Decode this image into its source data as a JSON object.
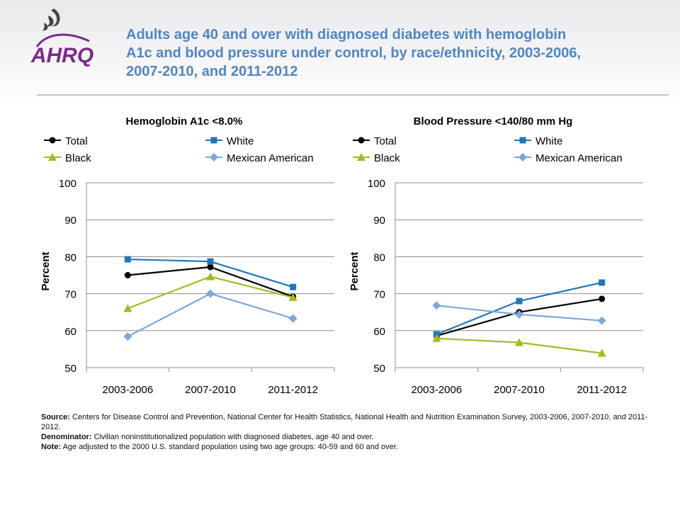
{
  "title": "Adults age 40 and over with diagnosed diabetes with hemoglobin A1c and blood pressure under control, by race/ethnicity, 2003-2006, 2007-2010, and 2011-2012",
  "logo": {
    "text": "AHRQ"
  },
  "colors": {
    "title": "#4f86c6",
    "total": "#000000",
    "white": "#1f77b9",
    "black": "#a8b820",
    "mexican_american": "#7fa7d8"
  },
  "chart_data": [
    {
      "type": "line",
      "title": "Hemoglobin A1c <8.0%",
      "ylabel": "Percent",
      "xlabel": "",
      "categories": [
        "2003-2006",
        "2007-2010",
        "2011-2012"
      ],
      "ylim": [
        50,
        100
      ],
      "yticks": [
        50,
        60,
        70,
        80,
        90,
        100
      ],
      "grid": true,
      "legend": "top",
      "series": [
        {
          "name": "Total",
          "values": [
            75,
            77.2,
            69.2
          ],
          "color": "#000000",
          "marker": "circle"
        },
        {
          "name": "White",
          "values": [
            79.3,
            78.7,
            71.8
          ],
          "color": "#1f77b9",
          "marker": "square"
        },
        {
          "name": "Black",
          "values": [
            66,
            74.6,
            69
          ],
          "color": "#a8b820",
          "marker": "triangle"
        },
        {
          "name": "Mexican American",
          "values": [
            58.4,
            70,
            63.3
          ],
          "color": "#7fa7d8",
          "marker": "diamond"
        }
      ]
    },
    {
      "type": "line",
      "title": "Blood Pressure <140/80 mm Hg",
      "ylabel": "Percent",
      "xlabel": "",
      "categories": [
        "2003-2006",
        "2007-2010",
        "2011-2012"
      ],
      "ylim": [
        50,
        100
      ],
      "yticks": [
        50,
        60,
        70,
        80,
        90,
        100
      ],
      "grid": true,
      "legend": "top",
      "series": [
        {
          "name": "Total",
          "values": [
            58.6,
            65,
            68.6
          ],
          "color": "#000000",
          "marker": "circle"
        },
        {
          "name": "White",
          "values": [
            59,
            68,
            73
          ],
          "color": "#1f77b9",
          "marker": "square"
        },
        {
          "name": "Black",
          "values": [
            57.9,
            56.8,
            53.9
          ],
          "color": "#a8b820",
          "marker": "triangle"
        },
        {
          "name": "Mexican American",
          "values": [
            66.8,
            64.4,
            62.7
          ],
          "color": "#7fa7d8",
          "marker": "diamond"
        }
      ]
    }
  ],
  "footnotes": {
    "source_label": "Source:",
    "source_text": "Centers for Disease Control and Prevention, National Center for Health Statistics, National Health and Nutrition Examination Survey, 2003-2006, 2007-2010, and 2011-2012.",
    "denominator_label": "Denominator:",
    "denominator_text": "Civilian noninstitutionalized population with diagnosed diabetes, age 40 and over.",
    "note_label": "Note:",
    "note_text": "Age adjusted to the 2000 U.S. standard population using two age groups: 40-59 and 60 and over."
  }
}
